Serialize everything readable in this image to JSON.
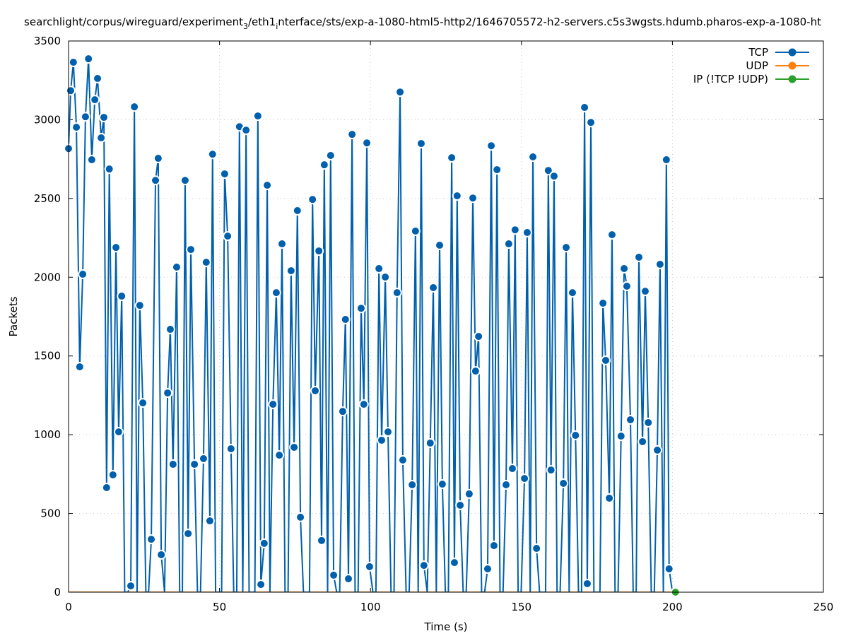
{
  "chart_data": {
    "type": "line",
    "title": {
      "part1": "searchlight/corpus/wireguard/experiment",
      "sub1": "3",
      "part2": "/eth1",
      "sub2": "i",
      "part3": "nterface/sts/exp-a-1080-html5-http2/1646705572-h2-servers.c5s3wgsts.hdumb.pharos-exp-a-1080-ht"
    },
    "xlabel": "Time (s)",
    "ylabel": "Packets",
    "xlim": [
      0,
      250
    ],
    "ylim": [
      0,
      3500
    ],
    "xticks": [
      "0",
      "50",
      "100",
      "150",
      "200",
      "250"
    ],
    "yticks": [
      "0",
      "500",
      "1000",
      "1500",
      "2000",
      "2500",
      "3000",
      "3500"
    ],
    "grid": true,
    "legend_position": "top-right",
    "series": [
      {
        "name": "TCP",
        "color": "#0060ad",
        "x": [
          0,
          0.7,
          1.6,
          2.6,
          3.7,
          4.7,
          5.6,
          6.6,
          7.7,
          8.7,
          9.6,
          10.8,
          11.7,
          12.6,
          13.5,
          14.7,
          15.7,
          16.6,
          17.6,
          18.6,
          19.6,
          20.6,
          21.8,
          22.7,
          23.6,
          24.6,
          25.6,
          26.5,
          27.4,
          28.8,
          29.7,
          30.7,
          31.8,
          32.8,
          33.7,
          34.6,
          35.8,
          36.8,
          37.7,
          38.6,
          39.6,
          40.5,
          41.7,
          42.7,
          43.7,
          44.7,
          45.6,
          46.8,
          47.7,
          48.7,
          49.7,
          50.7,
          51.7,
          52.7,
          53.8,
          54.7,
          55.7,
          56.6,
          57.7,
          58.8,
          59.8,
          60.8,
          61.7,
          62.7,
          63.7,
          64.8,
          65.8,
          66.7,
          67.7,
          68.8,
          69.8,
          70.7,
          71.7,
          72.7,
          73.7,
          74.7,
          75.8,
          76.8,
          77.8,
          78.8,
          79.8,
          80.8,
          81.7,
          82.9,
          83.8,
          84.7,
          85.8,
          86.8,
          87.8,
          88.8,
          89.8,
          90.8,
          91.7,
          92.7,
          93.9,
          94.9,
          95.9,
          96.9,
          97.8,
          98.8,
          99.7,
          100.8,
          101.8,
          102.8,
          103.7,
          104.9,
          105.8,
          106.8,
          107.8,
          108.8,
          109.8,
          110.7,
          111.8,
          112.8,
          113.8,
          114.9,
          115.8,
          116.8,
          117.7,
          118.8,
          119.8,
          120.8,
          121.8,
          122.9,
          123.8,
          124.8,
          125.8,
          126.9,
          127.8,
          128.7,
          129.7,
          130.7,
          131.7,
          132.7,
          133.9,
          134.8,
          135.8,
          136.8,
          137.8,
          138.8,
          140,
          140.9,
          141.9,
          142.9,
          143.9,
          144.9,
          145.8,
          147,
          147.9,
          148.9,
          149.9,
          151,
          151.9,
          152.9,
          153.8,
          155,
          156,
          157,
          158,
          158.9,
          159.8,
          160.8,
          161.8,
          162.8,
          163.9,
          164.8,
          165.8,
          166.9,
          167.9,
          168.9,
          169.9,
          170.9,
          171.8,
          173,
          174,
          175,
          176,
          177,
          177.9,
          179.1,
          180,
          181,
          182,
          183,
          184,
          184.9,
          186.1,
          187,
          188,
          188.9,
          190.1,
          191,
          192,
          193,
          194,
          195,
          195.9,
          197,
          198,
          198.9,
          200
        ],
        "y": [
          2817,
          3185,
          3365,
          2952,
          1431,
          2019,
          3019,
          3387,
          2746,
          3127,
          3262,
          2885,
          3015,
          664,
          2687,
          745,
          2189,
          1018,
          1880,
          0,
          0,
          40,
          3082,
          0,
          1821,
          1202,
          0,
          0,
          336,
          2615,
          2755,
          238,
          0,
          1265,
          1669,
          812,
          2064,
          0,
          0,
          2615,
          372,
          2176,
          812,
          0,
          0,
          848,
          2095,
          453,
          2781,
          0,
          0,
          0,
          2656,
          2261,
          911,
          0,
          0,
          2956,
          0,
          2934,
          0,
          0,
          0,
          3024,
          49,
          310,
          2584,
          0,
          1193,
          1902,
          870,
          2212,
          0,
          0,
          2041,
          920,
          2423,
          476,
          0,
          0,
          0,
          2494,
          1279,
          2167,
          328,
          2714,
          0,
          2773,
          108,
          0,
          0,
          1148,
          1732,
          85,
          2907,
          0,
          0,
          1803,
          1193,
          2853,
          162,
          0,
          0,
          2055,
          965,
          2001,
          1018,
          0,
          0,
          1902,
          3176,
          839,
          0,
          0,
          682,
          2293,
          0,
          2849,
          170,
          0,
          947,
          1934,
          0,
          2203,
          686,
          0,
          0,
          2759,
          188,
          2517,
          552,
          0,
          0,
          624,
          2503,
          1404,
          1624,
          0,
          0,
          148,
          2835,
          296,
          2683,
          0,
          0,
          682,
          2212,
          785,
          2301,
          0,
          0,
          722,
          2284,
          0,
          2764,
          278,
          0,
          0,
          0,
          2678,
          776,
          2642,
          0,
          0,
          691,
          2189,
          0,
          1902,
          996,
          0,
          0,
          3078,
          54,
          2983,
          0,
          0,
          0,
          1835,
          1472,
          597,
          2270,
          0,
          0,
          991,
          2055,
          1943,
          1095,
          0,
          0,
          2127,
          956,
          1911,
          1077,
          0,
          0,
          902,
          2082,
          0,
          2746,
          148,
          0
        ]
      },
      {
        "name": "UDP",
        "color": "#ff7f0e",
        "x": [
          0,
          201
        ],
        "y": [
          0,
          0
        ]
      },
      {
        "name": "IP (!TCP  !UDP)",
        "color": "#2ca02c",
        "x": [
          0,
          201
        ],
        "y": [
          0,
          0
        ]
      }
    ]
  }
}
